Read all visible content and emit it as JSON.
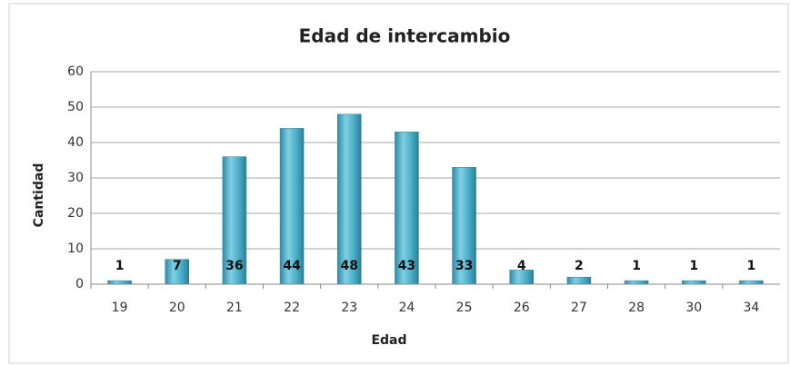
{
  "chart_data": {
    "type": "bar",
    "title": "Edad de intercambio",
    "x_label": "Edad",
    "y_label": "Cantidad",
    "categories": [
      "19",
      "20",
      "21",
      "22",
      "23",
      "24",
      "25",
      "26",
      "27",
      "28",
      "30",
      "34"
    ],
    "values": [
      1,
      7,
      36,
      44,
      48,
      43,
      33,
      4,
      2,
      1,
      1,
      1
    ],
    "color": "#4bacc6",
    "ylim": [
      0,
      60
    ],
    "yticks": [
      0,
      10,
      20,
      30,
      40,
      50,
      60
    ],
    "grid": true
  }
}
